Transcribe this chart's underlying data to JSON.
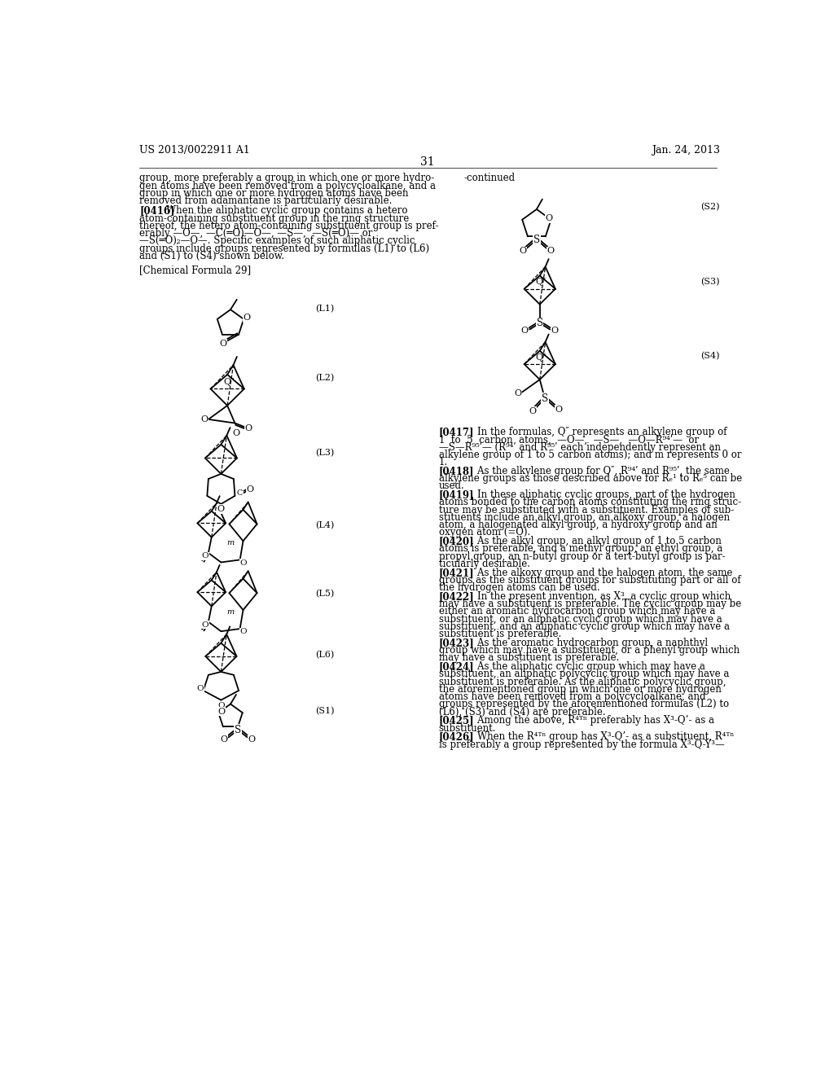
{
  "background_color": "#ffffff",
  "header_left": "US 2013/0022911 A1",
  "header_right": "Jan. 24, 2013",
  "page_number": "31"
}
